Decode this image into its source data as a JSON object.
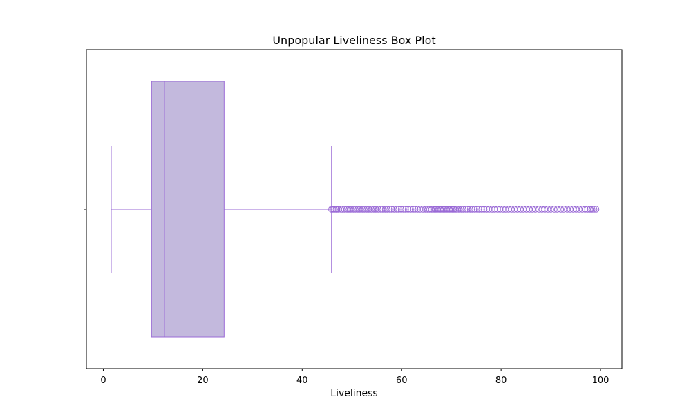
{
  "chart_data": {
    "type": "box",
    "orientation": "horizontal",
    "title": "Unpopular Liveliness Box Plot",
    "xlabel": "Liveliness",
    "ylabel": "",
    "xlim": [
      -3.4,
      104.3
    ],
    "x_ticks": [
      0,
      20,
      40,
      60,
      80,
      100
    ],
    "grid": false,
    "colors": {
      "box_fill": "#c3b9dd",
      "edge": "#9a6ad6"
    },
    "box": {
      "whisker_low": 1.6,
      "q1": 9.7,
      "median": 12.3,
      "q3": 24.3,
      "whisker_high": 45.9
    },
    "outliers": [
      45.9,
      46.2,
      46.5,
      46.8,
      47.0,
      47.3,
      47.8,
      48.1,
      48.5,
      49.0,
      49.4,
      49.8,
      50.3,
      50.7,
      51.2,
      51.6,
      52.1,
      52.5,
      53.0,
      53.4,
      53.9,
      54.4,
      54.8,
      55.3,
      55.8,
      56.2,
      56.7,
      57.1,
      57.6,
      58.0,
      58.5,
      59.0,
      59.4,
      59.9,
      60.4,
      60.8,
      61.3,
      61.8,
      62.3,
      62.7,
      63.2,
      63.7,
      64.3,
      64.8,
      65.2,
      65.6,
      66.0,
      66.3,
      66.6,
      66.9,
      67.2,
      67.5,
      67.8,
      68.1,
      68.4,
      68.7,
      69.0,
      69.3,
      69.6,
      69.9,
      70.2,
      70.5,
      70.8,
      71.1,
      71.5,
      72.0,
      72.4,
      72.9,
      73.3,
      73.8,
      74.2,
      74.7,
      75.2,
      75.6,
      76.1,
      76.6,
      77.1,
      77.6,
      78.2,
      78.7,
      79.3,
      79.8,
      80.4,
      80.9,
      81.5,
      82.1,
      82.7,
      83.3,
      83.9,
      84.5,
      85.1,
      85.7,
      86.3,
      86.9,
      87.6,
      88.2,
      88.8,
      89.4,
      90.0,
      90.7,
      91.3,
      92.0,
      92.6,
      93.3,
      93.9,
      94.5,
      95.1,
      95.7,
      96.3,
      96.9,
      97.4,
      97.9,
      98.3,
      98.7,
      99.1
    ]
  }
}
